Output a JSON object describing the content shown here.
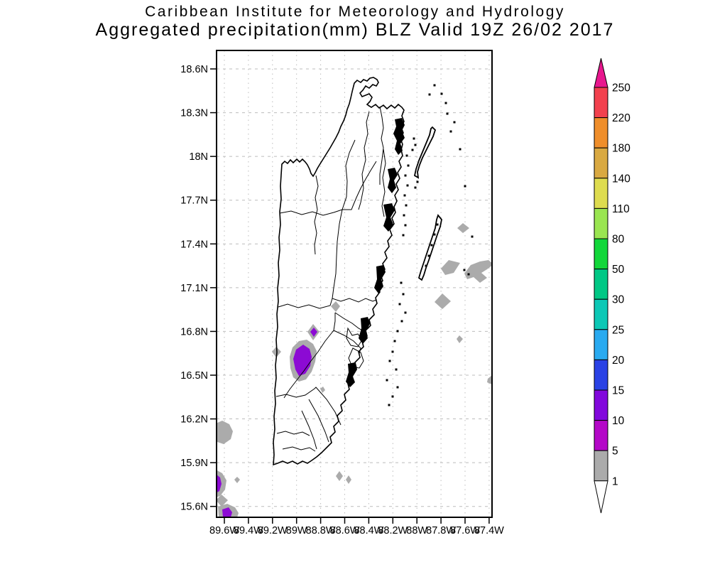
{
  "titles": {
    "line1": "Caribbean Institute for Meteorology and Hydrology",
    "line2": "Aggregated precipitation(mm) BLZ Valid 19Z 26/02 2017"
  },
  "axes": {
    "lat_labels": [
      "18.6N",
      "18.3N",
      "18N",
      "17.7N",
      "17.4N",
      "17.1N",
      "16.8N",
      "16.5N",
      "16.2N",
      "15.9N",
      "15.6N"
    ],
    "lon_labels": [
      "89.6W",
      "89.4W",
      "89.2W",
      "89W",
      "88.8W",
      "88.6W",
      "88.4W",
      "88.2W",
      "88W",
      "87.8W",
      "87.6W",
      "87.4W"
    ]
  },
  "colorbar": {
    "unit": "mm",
    "labels": [
      "250",
      "220",
      "180",
      "140",
      "110",
      "80",
      "50",
      "30",
      "25",
      "20",
      "15",
      "10",
      "5",
      "1"
    ],
    "segment_colors": [
      "#f2414e",
      "#ef8e2b",
      "#d9a942",
      "#dedc4f",
      "#9ae551",
      "#12d73a",
      "#00c885",
      "#0cc8b6",
      "#29aaf0",
      "#2a42e5",
      "#8208dc",
      "#b408c8",
      "#ababab"
    ],
    "arrow_top_color": "#e8178e",
    "arrow_bottom_color": "#ffffff",
    "outline_color": "#000000"
  },
  "precipitation": {
    "units": "mm",
    "colors": {
      "1-5": "#ababab",
      "5-10": "#b408c8",
      "10-15": "#8c0ad4"
    },
    "patches": [
      {
        "level": "1-5",
        "points": [
          [
            466,
            431
          ],
          [
            473,
            424
          ],
          [
            479,
            431
          ],
          [
            473,
            439
          ]
        ]
      },
      {
        "level": "1-5",
        "points": [
          [
            433,
            467
          ],
          [
            441,
            456
          ],
          [
            450,
            467
          ],
          [
            441,
            479
          ]
        ]
      },
      {
        "level": "10-15",
        "points": [
          [
            437,
            467
          ],
          [
            442,
            461
          ],
          [
            447,
            467
          ],
          [
            442,
            474
          ]
        ]
      },
      {
        "level": "1-5",
        "points": [
          [
            412,
            489
          ],
          [
            421,
            480
          ],
          [
            432,
            478
          ],
          [
            441,
            484
          ],
          [
            446,
            494
          ],
          [
            444,
            509
          ],
          [
            439,
            523
          ],
          [
            431,
            534
          ],
          [
            421,
            537
          ],
          [
            413,
            531
          ],
          [
            409,
            518
          ],
          [
            408,
            502
          ]
        ]
      },
      {
        "level": "10-15",
        "points": [
          [
            417,
            492
          ],
          [
            427,
            485
          ],
          [
            436,
            491
          ],
          [
            439,
            502
          ],
          [
            437,
            515
          ],
          [
            430,
            526
          ],
          [
            421,
            529
          ],
          [
            416,
            520
          ],
          [
            413,
            505
          ]
        ]
      },
      {
        "level": "1-5",
        "points": [
          [
            451,
            547
          ],
          [
            455,
            544
          ],
          [
            458,
            549
          ],
          [
            454,
            553
          ]
        ]
      },
      {
        "level": "1-5",
        "points": [
          [
            383,
            495
          ],
          [
            389,
            488
          ],
          [
            396,
            495
          ],
          [
            389,
            503
          ]
        ]
      },
      {
        "level": "1-5",
        "points": [
          [
            304,
            596
          ],
          [
            313,
            592
          ],
          [
            323,
            597
          ],
          [
            328,
            607
          ],
          [
            325,
            618
          ],
          [
            315,
            625
          ],
          [
            306,
            622
          ],
          [
            304,
            612
          ]
        ]
      },
      {
        "level": "1-5",
        "points": [
          [
            304,
            661
          ],
          [
            313,
            666
          ],
          [
            319,
            676
          ],
          [
            317,
            689
          ],
          [
            310,
            698
          ],
          [
            304,
            700
          ]
        ]
      },
      {
        "level": "10-15",
        "points": [
          [
            304,
            667
          ],
          [
            310,
            672
          ],
          [
            312,
            681
          ],
          [
            309,
            691
          ],
          [
            304,
            694
          ]
        ]
      },
      {
        "level": "1-5",
        "points": [
          [
            304,
            704
          ],
          [
            312,
            696
          ],
          [
            321,
            704
          ],
          [
            312,
            713
          ]
        ]
      },
      {
        "level": "1-5",
        "points": [
          [
            307,
            713
          ],
          [
            320,
            709
          ],
          [
            331,
            714
          ],
          [
            336,
            722
          ],
          [
            334,
            728
          ],
          [
            308,
            728
          ]
        ]
      },
      {
        "level": "10-15",
        "points": [
          [
            313,
            717
          ],
          [
            322,
            714
          ],
          [
            327,
            721
          ],
          [
            325,
            728
          ],
          [
            314,
            728
          ]
        ]
      },
      {
        "level": "1-5",
        "points": [
          [
            330,
            675
          ],
          [
            334,
            671
          ],
          [
            338,
            675
          ],
          [
            334,
            680
          ]
        ]
      },
      {
        "level": "1-5",
        "points": [
          [
            473,
            670
          ],
          [
            478,
            663
          ],
          [
            483,
            670
          ],
          [
            478,
            677
          ]
        ]
      },
      {
        "level": "1-5",
        "points": [
          [
            487,
            675
          ],
          [
            491,
            669
          ],
          [
            495,
            675
          ],
          [
            491,
            681
          ]
        ]
      },
      {
        "level": "1-5",
        "points": [
          [
            644,
            321
          ],
          [
            652,
            314
          ],
          [
            661,
            321
          ],
          [
            652,
            328
          ]
        ]
      },
      {
        "level": "1-5",
        "points": [
          [
            621,
            378
          ],
          [
            632,
            366
          ],
          [
            648,
            370
          ],
          [
            639,
            384
          ],
          [
            627,
            387
          ]
        ]
      },
      {
        "level": "1-5",
        "points": [
          [
            654,
            385
          ],
          [
            663,
            373
          ],
          [
            676,
            368
          ],
          [
            688,
            366
          ],
          [
            695,
            372
          ],
          [
            686,
            379
          ],
          [
            678,
            384
          ],
          [
            686,
            391
          ],
          [
            676,
            398
          ],
          [
            667,
            390
          ],
          [
            658,
            393
          ]
        ]
      },
      {
        "level": "1-5",
        "points": [
          [
            612,
            425
          ],
          [
            623,
            413
          ],
          [
            635,
            424
          ],
          [
            623,
            435
          ]
        ]
      },
      {
        "level": "1-5",
        "points": [
          [
            643,
            477
          ],
          [
            647,
            472
          ],
          [
            652,
            477
          ],
          [
            647,
            483
          ]
        ]
      },
      {
        "level": "1-5",
        "points": [
          [
            687,
            533
          ],
          [
            693,
            528
          ],
          [
            693,
            541
          ],
          [
            686,
            538
          ]
        ]
      }
    ]
  }
}
